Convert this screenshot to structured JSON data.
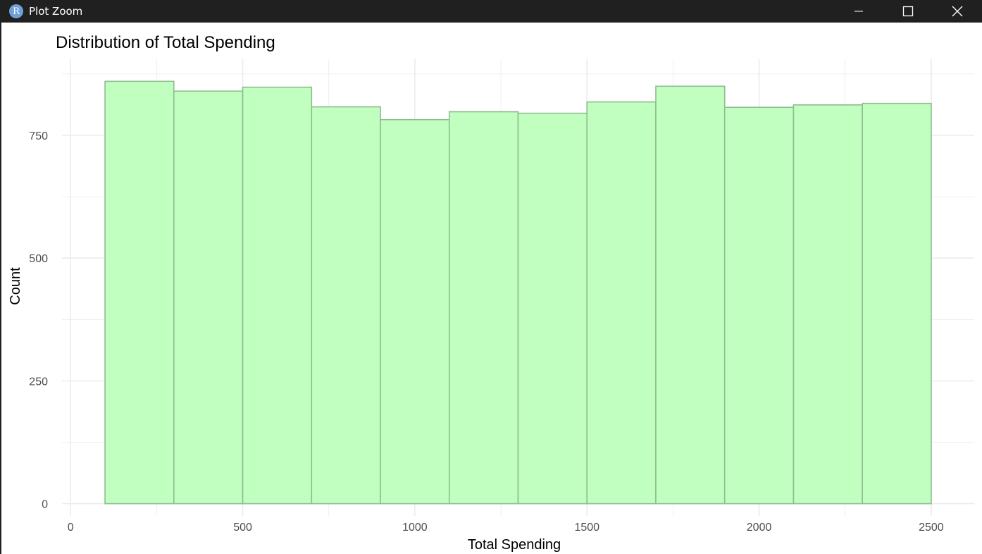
{
  "window": {
    "title": "Plot Zoom",
    "app_icon_glyph": "R",
    "controls": [
      "minimize-icon",
      "maximize-icon",
      "close-icon"
    ]
  },
  "chart_data": {
    "type": "bar",
    "title": "Distribution of Total Spending",
    "xlabel": "Total Spending",
    "ylabel": "Count",
    "xlim": [
      -25,
      2625
    ],
    "ylim": [
      -25,
      905
    ],
    "x_ticks": [
      0,
      500,
      1000,
      1500,
      2000,
      2500
    ],
    "y_ticks": [
      0,
      250,
      500,
      750
    ],
    "x_minor_grid": [
      250,
      750,
      1250,
      1750,
      2250
    ],
    "y_minor_grid": [
      125,
      375,
      625,
      875
    ],
    "bin_edges": [
      100,
      300,
      500,
      700,
      900,
      1100,
      1300,
      1500,
      1700,
      1900,
      2100,
      2300,
      2500
    ],
    "counts": [
      860,
      840,
      848,
      808,
      782,
      798,
      795,
      818,
      850,
      807,
      812,
      815
    ],
    "fill_color": "#c1ffc1",
    "edge_color": "#8fbc8f",
    "grid": true,
    "grid_color": "#ebebeb"
  }
}
